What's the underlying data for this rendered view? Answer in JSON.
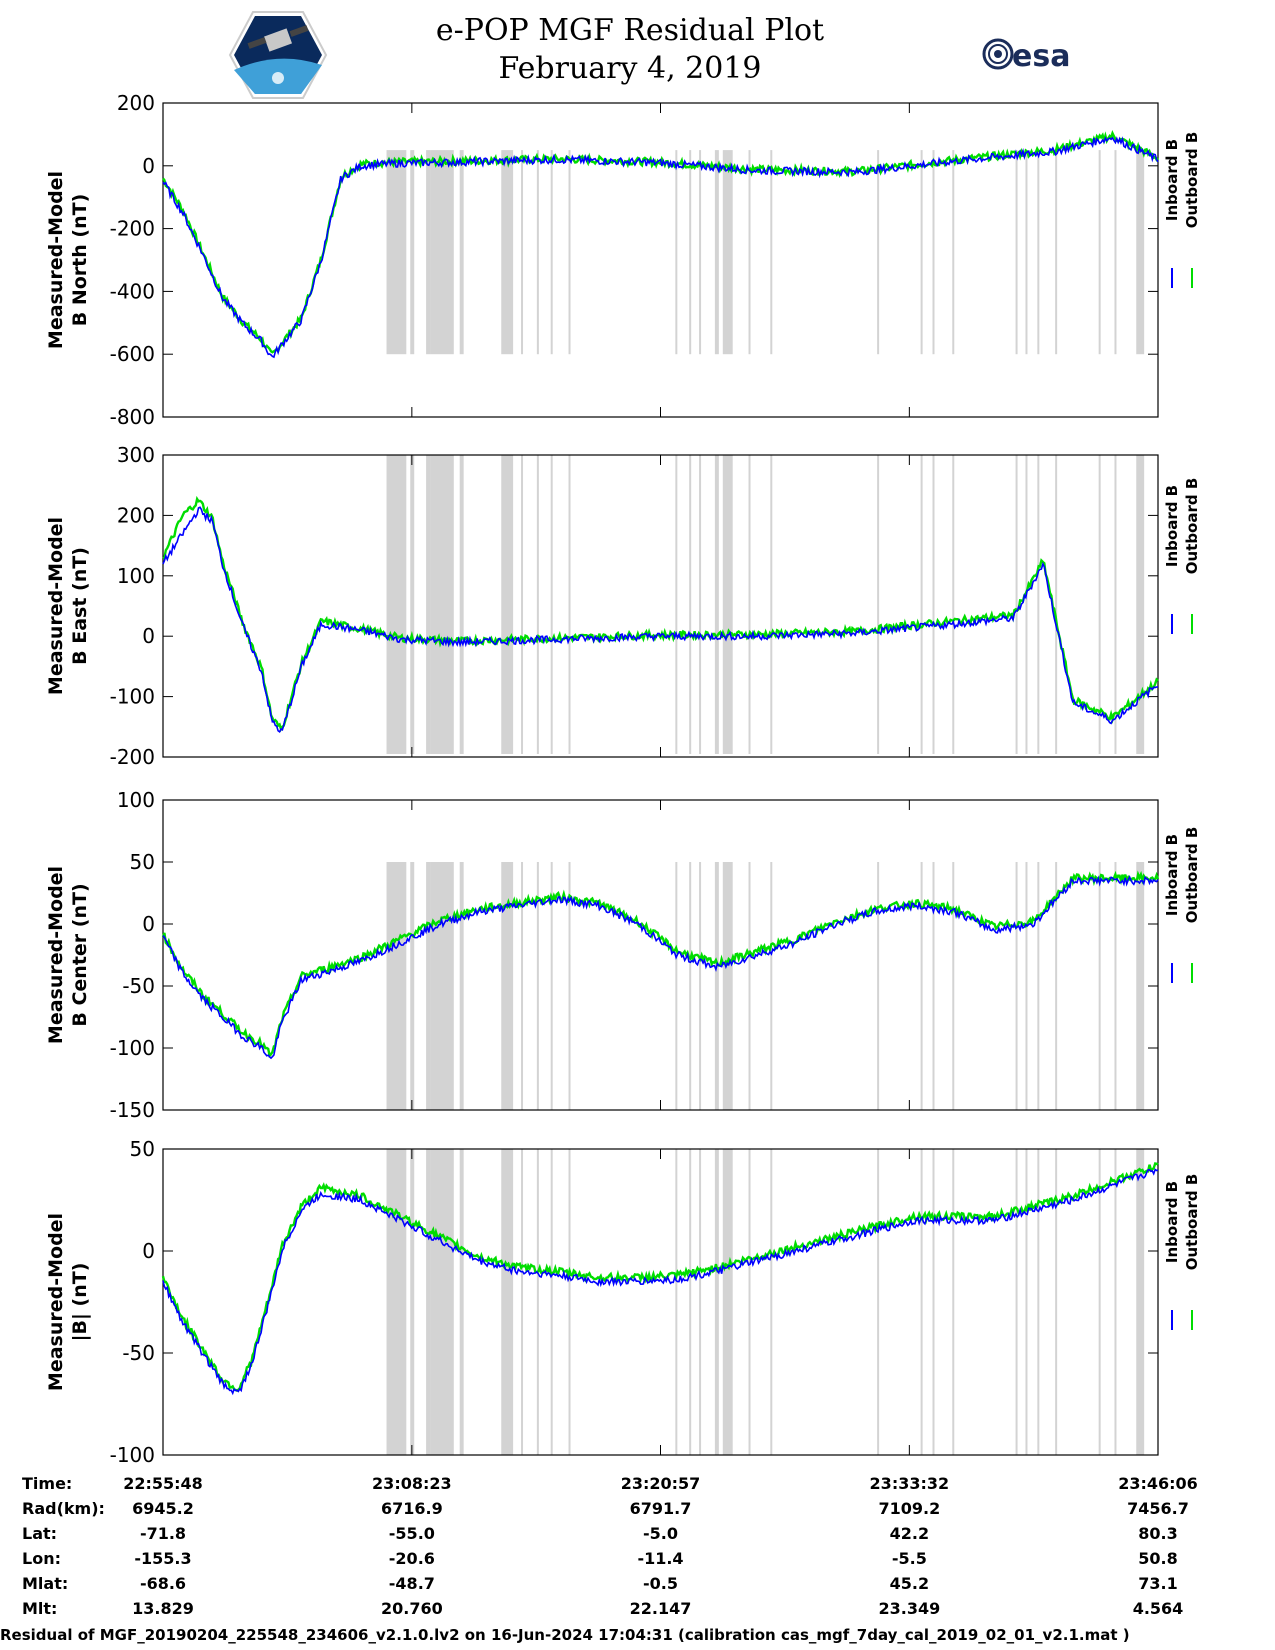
{
  "header": {
    "title_line1": "e-POP MGF Residual Plot",
    "title_line2": "February 4, 2019",
    "logo_left_name": "cassiope-logo",
    "logo_right_text": "esa"
  },
  "legend": {
    "inboard_label": "Inboard B",
    "outboard_label": "Outboard B",
    "inboard_color": "#0000ff",
    "outboard_color": "#00dd00",
    "gap_color": "#d3d3d3"
  },
  "chart_data": [
    {
      "type": "line",
      "ylabel_line1": "Measured-Model",
      "ylabel_line2": "B North (nT)",
      "ylim": [
        -800,
        200
      ],
      "yticks": [
        200,
        0,
        -200,
        -400,
        -600,
        -800
      ],
      "ytick_labels": [
        "200",
        "0",
        "-200",
        "-400",
        "-600",
        "-800"
      ],
      "xlim_minutes": [
        0,
        50.3
      ],
      "series": [
        {
          "name": "Inboard B",
          "x": [
            0,
            1,
            2,
            3,
            4,
            5,
            5.5,
            6,
            7,
            8,
            9,
            10,
            11,
            12,
            15,
            20,
            25,
            30,
            35,
            40,
            45,
            48,
            50.3
          ],
          "values": [
            -50,
            -150,
            -280,
            -420,
            -500,
            -560,
            -610,
            -570,
            -490,
            -300,
            -40,
            0,
            5,
            8,
            12,
            20,
            10,
            -15,
            -20,
            15,
            45,
            90,
            20
          ]
        },
        {
          "name": "Outboard B",
          "x": [
            0,
            1,
            2,
            3,
            4,
            5,
            5.5,
            6,
            7,
            8,
            9,
            10,
            11,
            12,
            15,
            20,
            25,
            30,
            35,
            40,
            45,
            48,
            50.3
          ],
          "values": [
            -40,
            -140,
            -275,
            -415,
            -495,
            -555,
            -605,
            -565,
            -485,
            -295,
            -35,
            5,
            10,
            12,
            15,
            22,
            12,
            -12,
            -18,
            18,
            50,
            95,
            25
          ]
        }
      ],
      "gap_band_range": [
        -600,
        50
      ]
    },
    {
      "type": "line",
      "ylabel_line1": "Measured-Model",
      "ylabel_line2": "B East (nT)",
      "ylim": [
        -200,
        300
      ],
      "yticks": [
        300,
        200,
        100,
        0,
        -100,
        -200
      ],
      "ytick_labels": [
        "300",
        "200",
        "100",
        "0",
        "-100",
        "-200"
      ],
      "xlim_minutes": [
        0,
        50.3
      ],
      "series": [
        {
          "name": "Inboard B",
          "x": [
            0,
            1,
            1.8,
            2.5,
            3,
            4,
            5,
            5.5,
            6,
            7,
            8,
            10,
            12,
            15,
            20,
            25,
            30,
            35,
            40,
            43,
            44.5,
            46,
            48,
            50.3
          ],
          "values": [
            120,
            170,
            210,
            190,
            120,
            20,
            -60,
            -140,
            -160,
            -50,
            20,
            10,
            -5,
            -10,
            -5,
            0,
            0,
            5,
            20,
            30,
            120,
            -110,
            -140,
            -80
          ]
        },
        {
          "name": "Outboard B",
          "x": [
            0,
            1,
            1.8,
            2.5,
            3,
            4,
            5,
            5.5,
            6,
            7,
            8,
            10,
            12,
            15,
            20,
            25,
            30,
            35,
            40,
            43,
            44.5,
            46,
            48,
            50.3
          ],
          "values": [
            130,
            200,
            225,
            195,
            125,
            25,
            -55,
            -135,
            -155,
            -45,
            25,
            12,
            -3,
            -8,
            -3,
            2,
            3,
            8,
            25,
            35,
            125,
            -105,
            -135,
            -75
          ]
        }
      ],
      "gap_band_range": [
        -195,
        300
      ]
    },
    {
      "type": "line",
      "ylabel_line1": "Measured-Model",
      "ylabel_line2": "B Center (nT)",
      "ylim": [
        -150,
        100
      ],
      "yticks": [
        100,
        50,
        0,
        -50,
        -100,
        -150
      ],
      "ytick_labels": [
        "100",
        "50",
        "0",
        "-50",
        "-100",
        "-150"
      ],
      "xlim_minutes": [
        0,
        50.3
      ],
      "series": [
        {
          "name": "Inboard B",
          "x": [
            0,
            1,
            2,
            3,
            4,
            5,
            5.5,
            6,
            7,
            8,
            10,
            12,
            14,
            16,
            18,
            20,
            22,
            24,
            26,
            28,
            30,
            32,
            34,
            36,
            38,
            40,
            42,
            44,
            46,
            48,
            50.3
          ],
          "values": [
            -10,
            -40,
            -60,
            -75,
            -90,
            -100,
            -110,
            -80,
            -45,
            -40,
            -30,
            -15,
            0,
            10,
            15,
            20,
            15,
            0,
            -25,
            -35,
            -25,
            -15,
            0,
            10,
            15,
            10,
            -5,
            0,
            35,
            35,
            35
          ]
        },
        {
          "name": "Outboard B",
          "x": [
            0,
            1,
            2,
            3,
            4,
            5,
            5.5,
            6,
            7,
            8,
            10,
            12,
            14,
            16,
            18,
            20,
            22,
            24,
            26,
            28,
            30,
            32,
            34,
            36,
            38,
            40,
            42,
            44,
            46,
            48,
            50.3
          ],
          "values": [
            -8,
            -37,
            -57,
            -72,
            -87,
            -97,
            -107,
            -77,
            -42,
            -37,
            -27,
            -12,
            3,
            12,
            17,
            22,
            17,
            2,
            -22,
            -32,
            -22,
            -12,
            2,
            12,
            17,
            12,
            -2,
            2,
            37,
            37,
            37
          ]
        }
      ],
      "gap_band_range": [
        -150,
        50
      ]
    },
    {
      "type": "line",
      "ylabel_line1": "Measured-Model",
      "ylabel_line2": "|B| (nT)",
      "ylim": [
        -100,
        50
      ],
      "yticks": [
        50,
        0,
        -50,
        -100
      ],
      "ytick_labels": [
        "50",
        "0",
        "-50",
        "-100"
      ],
      "xlim_minutes": [
        0,
        50.3
      ],
      "series": [
        {
          "name": "Inboard B",
          "x": [
            0,
            1,
            2,
            3,
            3.8,
            4.5,
            5.5,
            6,
            7,
            8,
            10,
            12,
            14,
            16,
            18,
            20,
            22,
            24,
            26,
            28,
            30,
            32,
            34,
            36,
            38,
            40,
            42,
            44,
            46,
            48,
            50.3
          ],
          "values": [
            -15,
            -35,
            -50,
            -65,
            -70,
            -55,
            -20,
            0,
            20,
            28,
            25,
            15,
            5,
            -5,
            -10,
            -12,
            -15,
            -15,
            -14,
            -10,
            -5,
            0,
            5,
            10,
            15,
            15,
            15,
            20,
            25,
            32,
            40
          ]
        },
        {
          "name": "Outboard B",
          "x": [
            0,
            1,
            2,
            3,
            3.8,
            4.5,
            5.5,
            6,
            7,
            8,
            10,
            12,
            14,
            16,
            18,
            20,
            22,
            24,
            26,
            28,
            30,
            32,
            34,
            36,
            38,
            40,
            42,
            44,
            46,
            48,
            50.3
          ],
          "values": [
            -13,
            -33,
            -48,
            -63,
            -68,
            -53,
            -18,
            2,
            22,
            31,
            27,
            17,
            7,
            -3,
            -8,
            -10,
            -13,
            -13,
            -12,
            -8,
            -3,
            2,
            7,
            12,
            17,
            17,
            17,
            22,
            27,
            34,
            42
          ]
        }
      ],
      "gap_band_range": [
        -100,
        50
      ]
    }
  ],
  "gaps_minutes": [
    [
      11.3,
      12.3
    ],
    [
      12.5,
      12.7
    ],
    [
      13.3,
      13.5
    ],
    [
      13.5,
      14.7
    ],
    [
      15.0,
      15.2
    ],
    [
      17.1,
      17.7
    ],
    [
      18.1,
      18.2
    ],
    [
      18.9,
      19.0
    ],
    [
      19.6,
      19.7
    ],
    [
      20.5,
      20.6
    ],
    [
      25.9,
      26.0
    ],
    [
      26.6,
      26.7
    ],
    [
      27.1,
      27.2
    ],
    [
      27.9,
      28.1
    ],
    [
      28.3,
      28.8
    ],
    [
      29.6,
      29.7
    ],
    [
      30.7,
      30.8
    ],
    [
      36.1,
      36.2
    ],
    [
      38.3,
      38.4
    ],
    [
      38.9,
      39.0
    ],
    [
      39.9,
      40.0
    ],
    [
      43.1,
      43.2
    ],
    [
      43.6,
      43.7
    ],
    [
      44.2,
      44.3
    ],
    [
      45.1,
      45.2
    ],
    [
      47.3,
      47.4
    ],
    [
      48.1,
      48.2
    ],
    [
      49.2,
      49.6
    ]
  ],
  "x_axis": {
    "tick_positions_minutes": [
      0,
      12.58,
      25.15,
      37.73,
      50.3
    ],
    "rows": [
      {
        "label": "Time:",
        "values": [
          "22:55:48",
          "23:08:23",
          "23:20:57",
          "23:33:32",
          "23:46:06"
        ]
      },
      {
        "label": "Rad(km):",
        "values": [
          "6945.2",
          "6716.9",
          "6791.7",
          "7109.2",
          "7456.7"
        ]
      },
      {
        "label": "Lat:",
        "values": [
          "-71.8",
          "-55.0",
          "-5.0",
          "42.2",
          "80.3"
        ]
      },
      {
        "label": "Lon:",
        "values": [
          "-155.3",
          "-20.6",
          "-11.4",
          "-5.5",
          "50.8"
        ]
      },
      {
        "label": "Mlat:",
        "values": [
          "-68.6",
          "-48.7",
          "-0.5",
          "45.2",
          "73.1"
        ]
      },
      {
        "label": "Mlt:",
        "values": [
          "13.829",
          "20.760",
          "22.147",
          "23.349",
          "4.564"
        ]
      }
    ]
  },
  "footer": {
    "text": "Residual of MGF_20190204_225548_234606_v2.1.0.lv2 on 16-Jun-2024 17:04:31 (calibration cas_mgf_7day_cal_2019_02_01_v2.1.mat )"
  }
}
